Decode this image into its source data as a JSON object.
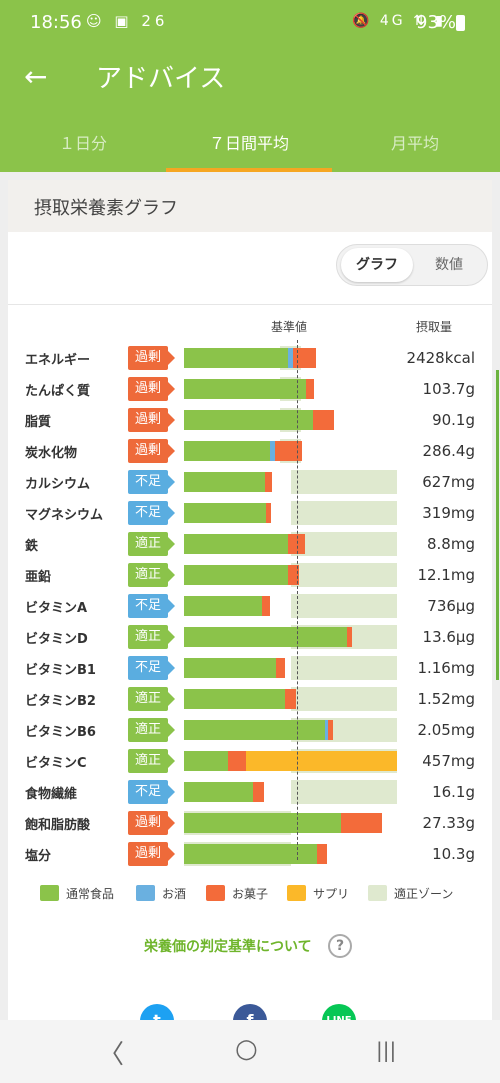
{
  "status": {
    "time": "18:56",
    "left_icons": "☺ ▣ 26",
    "right_icons": "🔕 4G ⇅ ▮",
    "battery": "93%"
  },
  "appbar": {
    "title": "アドバイス"
  },
  "tabs": [
    {
      "label": "１日分"
    },
    {
      "label": "７日間平均"
    },
    {
      "label": "月平均"
    }
  ],
  "card": {
    "title": "摂取栄養素グラフ",
    "toggle": {
      "graph": "グラフ",
      "values": "数値"
    },
    "header_ref": "基準値",
    "header_amount": "摂取量"
  },
  "colors": {
    "food": "#8bc34a",
    "alcohol": "#6ab0e0",
    "sweets": "#f36b3a",
    "supplement": "#fbb829",
    "zone": "#dfe9cf"
  },
  "chart_data": {
    "type": "bar",
    "rows": [
      {
        "name": "エネルギー",
        "status": "過剰",
        "amount": "2428kcal"
      },
      {
        "name": "たんぱく質",
        "status": "過剰",
        "amount": "103.7g"
      },
      {
        "name": "脂質",
        "status": "過剰",
        "amount": "90.1g"
      },
      {
        "name": "炭水化物",
        "status": "過剰",
        "amount": "286.4g"
      },
      {
        "name": "カルシウム",
        "status": "不足",
        "amount": "627mg"
      },
      {
        "name": "マグネシウム",
        "status": "不足",
        "amount": "319mg"
      },
      {
        "name": "鉄",
        "status": "適正",
        "amount": "8.8mg"
      },
      {
        "name": "亜鉛",
        "status": "適正",
        "amount": "12.1mg"
      },
      {
        "name": "ビタミンA",
        "status": "不足",
        "amount": "736μg"
      },
      {
        "name": "ビタミンD",
        "status": "適正",
        "amount": "13.6μg"
      },
      {
        "name": "ビタミンB1",
        "status": "不足",
        "amount": "1.16mg"
      },
      {
        "name": "ビタミンB2",
        "status": "適正",
        "amount": "1.52mg"
      },
      {
        "name": "ビタミンB6",
        "status": "適正",
        "amount": "2.05mg"
      },
      {
        "name": "ビタミンC",
        "status": "適正",
        "amount": "457mg"
      },
      {
        "name": "食物繊維",
        "status": "不足",
        "amount": "16.1g"
      },
      {
        "name": "飽和脂肪酸",
        "status": "過剰",
        "amount": "27.33g"
      },
      {
        "name": "塩分",
        "status": "過剰",
        "amount": "10.3g"
      }
    ],
    "ratios": [
      [
        0.98,
        0.04,
        0.22,
        0
      ],
      [
        1.15,
        0,
        0.07,
        0
      ],
      [
        1.21,
        0,
        0.2,
        0
      ],
      [
        0.81,
        0.04,
        0.26,
        0
      ],
      [
        0.76,
        0,
        0.07,
        0
      ],
      [
        0.77,
        0,
        0.05,
        0
      ],
      [
        0.98,
        0,
        0.16,
        0
      ],
      [
        0.98,
        0,
        0.1,
        0
      ],
      [
        0.73,
        0,
        0.08,
        0
      ],
      [
        1.53,
        0,
        0.05,
        0
      ],
      [
        0.86,
        0,
        0.09,
        0
      ],
      [
        0.95,
        0,
        0.1,
        0
      ],
      [
        1.32,
        0.03,
        0.05,
        0
      ],
      [
        0.41,
        0,
        0.17,
        1.42
      ],
      [
        0.65,
        0,
        0.1,
        0
      ],
      [
        1.47,
        0,
        0.39,
        0
      ],
      [
        1.25,
        0,
        0.09,
        0
      ]
    ],
    "zones": [
      [
        0.9,
        1.1
      ],
      [
        0.9,
        1.1
      ],
      [
        0.9,
        1.1
      ],
      [
        0.9,
        1.1
      ],
      [
        1.0,
        2.0
      ],
      [
        1.0,
        2.0
      ],
      [
        1.0,
        2.0
      ],
      [
        1.0,
        2.0
      ],
      [
        1.0,
        2.0
      ],
      [
        1.0,
        2.0
      ],
      [
        1.0,
        2.0
      ],
      [
        1.0,
        2.0
      ],
      [
        1.0,
        2.0
      ],
      [
        1.0,
        2.0
      ],
      [
        1.0,
        2.0
      ],
      [
        0.0,
        1.0
      ],
      [
        0.0,
        1.0
      ]
    ],
    "scale_max": 2.0
  },
  "legend": [
    {
      "label": "通常食品",
      "key": "food"
    },
    {
      "label": "お酒",
      "key": "alcohol"
    },
    {
      "label": "お菓子",
      "key": "sweets"
    },
    {
      "label": "サプリ",
      "key": "supplement"
    },
    {
      "label": "適正ゾーン",
      "key": "zone"
    }
  ],
  "note": "栄養価の判定基準について",
  "help_icon": "?",
  "social": [
    {
      "name": "twitter",
      "glyph": "t",
      "color": "#1da1f2"
    },
    {
      "name": "facebook",
      "glyph": "f",
      "color": "#3b5998"
    },
    {
      "name": "line",
      "glyph": "LINE",
      "color": "#06c755"
    }
  ],
  "nav": {
    "back": "〈",
    "home": "○",
    "recents": "|||"
  }
}
